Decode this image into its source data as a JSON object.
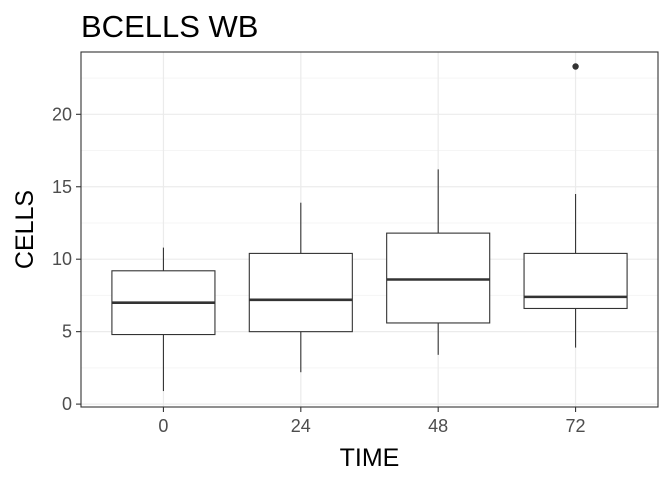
{
  "chart_data": {
    "type": "boxplot",
    "title": "BCELLS WB",
    "xlabel": "TIME",
    "ylabel": "CELLS",
    "categories": [
      "0",
      "24",
      "48",
      "72"
    ],
    "ylim": [
      -0.2,
      24.3
    ],
    "yticks": [
      0,
      5,
      10,
      15,
      20
    ],
    "grid": true,
    "boxes": [
      {
        "category": "0",
        "whisker_low": 0.9,
        "q1": 4.8,
        "median": 7.0,
        "q3": 9.2,
        "whisker_high": 10.8,
        "outliers": []
      },
      {
        "category": "24",
        "whisker_low": 2.2,
        "q1": 5.0,
        "median": 7.2,
        "q3": 10.4,
        "whisker_high": 13.9,
        "outliers": []
      },
      {
        "category": "48",
        "whisker_low": 3.4,
        "q1": 5.6,
        "median": 8.6,
        "q3": 11.8,
        "whisker_high": 16.2,
        "outliers": []
      },
      {
        "category": "72",
        "whisker_low": 3.9,
        "q1": 6.6,
        "median": 7.4,
        "q3": 10.4,
        "whisker_high": 14.5,
        "outliers": [
          23.3
        ]
      }
    ],
    "colors": {
      "box_line": "#333333",
      "grid_major": "#ebebeb",
      "grid_minor": "#f5f5f5",
      "panel_border": "#333333",
      "tick_text": "#4d4d4d"
    }
  }
}
